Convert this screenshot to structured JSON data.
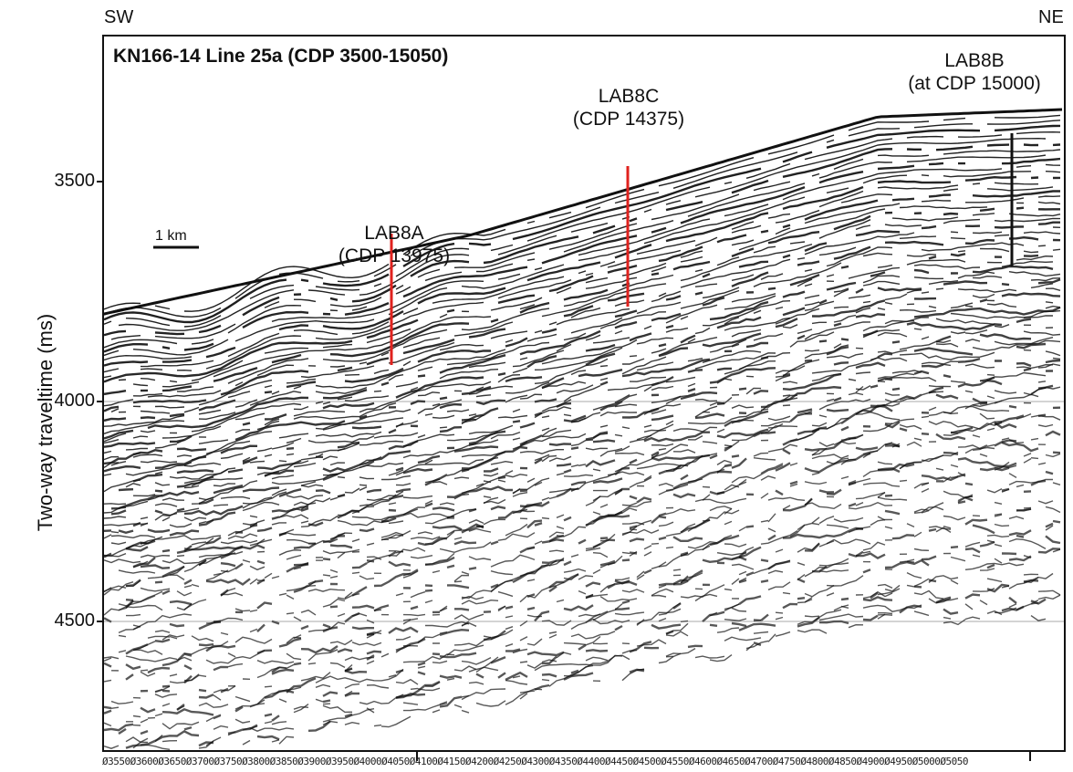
{
  "directions": {
    "left": "SW",
    "right": "NE"
  },
  "title": "KN166-14 Line 25a (CDP 3500-15050)",
  "y_axis": {
    "label": "Two-way traveltime (ms)",
    "ticks": [
      "3500",
      "4000",
      "4500"
    ]
  },
  "scale_bar": {
    "label": "1 km"
  },
  "sites": [
    {
      "name": "LAB8A",
      "cdp": "(CDP 13975)",
      "color": "#e0221e"
    },
    {
      "name": "LAB8C",
      "cdp": "(CDP 14375)",
      "color": "#e0221e"
    },
    {
      "name": "LAB8B",
      "cdp": "(at CDP 15000)",
      "color": "#111111"
    }
  ],
  "cdp_axis_text": "Ø3550Ø3600Ø3650Ø3700Ø3750Ø3800Ø3850Ø3900Ø3950Ø4000Ø4050Ø4100Ø4150Ø4200Ø4250Ø4300Ø4350Ø4400Ø4450Ø4500Ø4550Ø4600Ø4650Ø4700Ø4750Ø4800Ø4850Ø4900Ø4950Ø5000Ø5050",
  "colors": {
    "reflector": "#111111",
    "site_red": "#e0221e",
    "site_black": "#111111"
  }
}
